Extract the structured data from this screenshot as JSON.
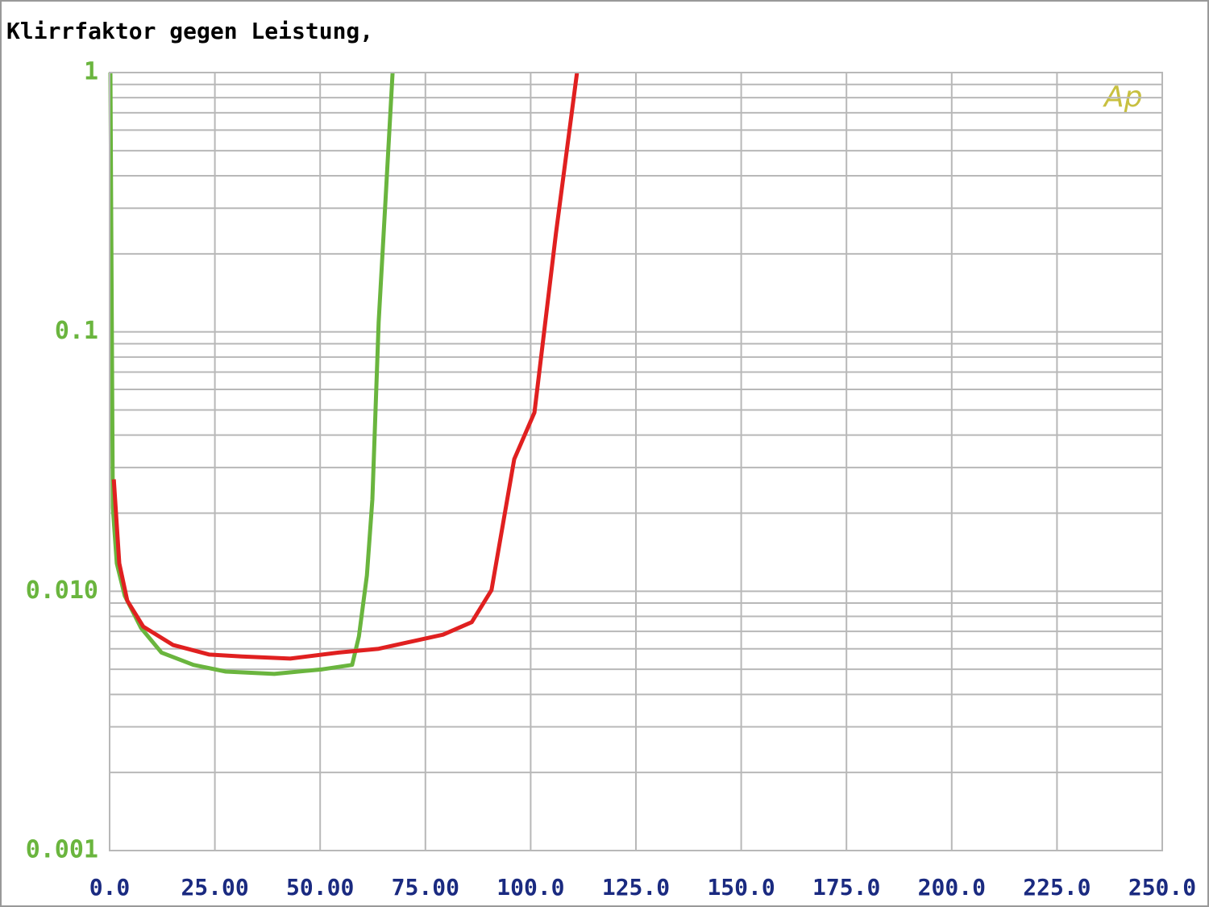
{
  "chart_data": {
    "type": "line",
    "title": "Klirrfaktor gegen Leistung,",
    "annotations": [
      "Ap"
    ],
    "log_y": true,
    "grid": true,
    "xlim": [
      0,
      250
    ],
    "ylim": [
      0.001,
      1
    ],
    "xticks": [
      {
        "value": 0,
        "label": "0.0"
      },
      {
        "value": 25,
        "label": "25.00"
      },
      {
        "value": 50,
        "label": "50.00"
      },
      {
        "value": 75,
        "label": "75.00"
      },
      {
        "value": 100,
        "label": "100.0"
      },
      {
        "value": 125,
        "label": "125.0"
      },
      {
        "value": 150,
        "label": "150.0"
      },
      {
        "value": 175,
        "label": "175.0"
      },
      {
        "value": 200,
        "label": "200.0"
      },
      {
        "value": 225,
        "label": "225.0"
      },
      {
        "value": 250,
        "label": "250.0"
      }
    ],
    "yticks": [
      1,
      0.1,
      {
        "value": 0.01,
        "label": "0.010"
      },
      0.001
    ],
    "series": [
      {
        "color": "#6ab53e",
        "x": [
          0.19,
          0.77,
          1.7,
          3.6,
          7.5,
          12.3,
          19.9,
          27.6,
          39.1,
          50.5,
          57.6,
          59.2,
          61.1,
          62.4,
          63.9,
          65.5,
          67.2
        ],
        "values": [
          1,
          0.021,
          0.0128,
          0.0096,
          0.0072,
          0.0058,
          0.0052,
          0.0049,
          0.0048,
          0.005,
          0.0052,
          0.0067,
          0.0115,
          0.0226,
          0.109,
          0.318,
          1
        ]
      },
      {
        "color": "#e02020",
        "x": [
          1.0,
          2.3,
          4.2,
          8.0,
          15.1,
          23.7,
          31.4,
          42.9,
          54.4,
          63.9,
          79.2,
          86.0,
          90.7,
          96.1,
          100.9,
          106.0,
          111.0
        ],
        "values": [
          0.027,
          0.0128,
          0.0092,
          0.0073,
          0.0062,
          0.0057,
          0.0056,
          0.0055,
          0.0058,
          0.006,
          0.0068,
          0.0076,
          0.0101,
          0.0323,
          0.0489,
          0.239,
          1
        ]
      }
    ]
  }
}
